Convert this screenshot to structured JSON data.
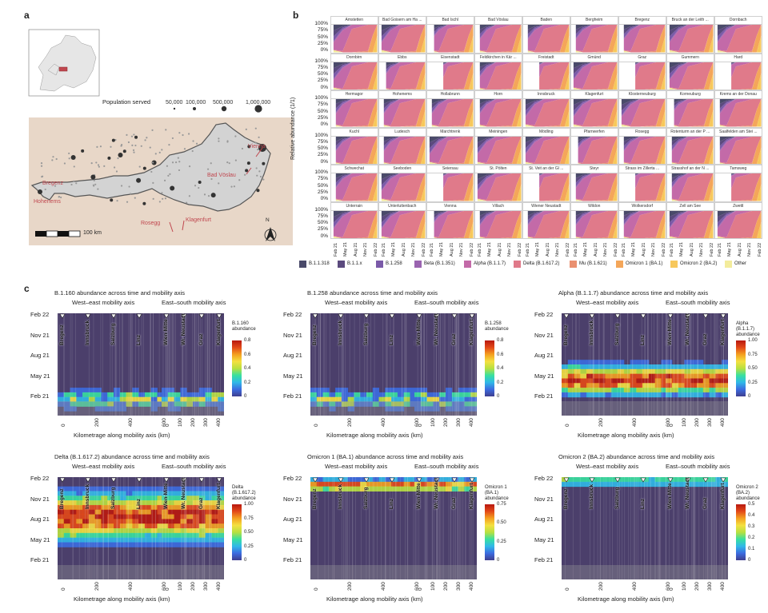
{
  "panel_a": {
    "label": "a",
    "population_title": "Population served",
    "population_sizes": [
      "50,000",
      "100,000",
      "500,000",
      "1,000,000"
    ],
    "cities": [
      "Vienna",
      "Bad Vöslau",
      "Bregenz",
      "Hohenems",
      "Rosegg",
      "Klagenfurt"
    ],
    "scale_label": "100 km",
    "north_label": "N",
    "colors": {
      "map_bg": "#e8d7c8",
      "austria": "#d6d6d6",
      "city": "#c0474f"
    }
  },
  "panel_b": {
    "label": "b",
    "y_axis_title": "Relative abundance (1/1)",
    "y_ticks": [
      "100%",
      "75%",
      "50%",
      "25%",
      "0%"
    ],
    "x_ticks": [
      "Feb 21",
      "May 21",
      "Aug 21",
      "Nov 21",
      "Feb 22"
    ],
    "facets": [
      "Amstetten",
      "Bad Goisern am Ha ...",
      "Bad Ischl",
      "Bad Vöslau",
      "Baden",
      "Bergheim",
      "Bregenz",
      "Bruck an der Leith ...",
      "Dornbach",
      "Dornbirn",
      "Ebbs",
      "Eisenstadt",
      "Feldkirchen in Kär ...",
      "Freistadt",
      "Gmünd",
      "Graz",
      "Gummern",
      "Hard",
      "Hermagor",
      "Hohenems",
      "Hollabrunn",
      "Horn",
      "Innsbruck",
      "Klagenfurt",
      "Klosterneuburg",
      "Korneuburg",
      "Krems an der Donau",
      "Kuchl",
      "Ludesch",
      "Marchtrenk",
      "Meiningen",
      "Mödling",
      "Pfarrwerfen",
      "Rosegg",
      "Rotenturm an der P ...",
      "Saalfelden am Stei ...",
      "Schwechat",
      "Seeboden",
      "Seiersau",
      "St. Pölten",
      "St. Veit an der Gl ...",
      "Steyr",
      "Strass im Zillerta ...",
      "Strasshof an der N ...",
      "Tamsweg",
      "Unterrain",
      "Unterluttenbach",
      "Vienna",
      "Villach",
      "Wiener Neustadt",
      "Wildon",
      "Wolkersdorf",
      "Zell am See",
      "Zwettl"
    ],
    "legend": [
      {
        "name": "B.1.1.318",
        "color": "#4a4a6a"
      },
      {
        "name": "B.1.1.x",
        "color": "#5b4a7e"
      },
      {
        "name": "B.1.258",
        "color": "#7a5aa8"
      },
      {
        "name": "Beta (B.1.351)",
        "color": "#9a64b0"
      },
      {
        "name": "Alpha (B.1.1.7)",
        "color": "#c36aa8"
      },
      {
        "name": "Delta (B.1.617.2)",
        "color": "#e07a8a"
      },
      {
        "name": "Mu (B.1.621)",
        "color": "#ea9070"
      },
      {
        "name": "Omicron 1 (BA.1)",
        "color": "#f4a65a"
      },
      {
        "name": "Omicron 2 (BA.2)",
        "color": "#f7c85c"
      },
      {
        "name": "Other",
        "color": "#f3ec9c"
      }
    ]
  },
  "panel_c": {
    "label": "c",
    "axis_labels": {
      "we": "West–east mobility axis",
      "es": "East–south mobility axis",
      "x": "Kilometrage along mobility axis (km)"
    },
    "y_ticks": [
      "Feb 22",
      "Nov 21",
      "Aug 21",
      "May 21",
      "Feb 21"
    ],
    "we_ticks": [
      "0",
      "200",
      "400",
      "600"
    ],
    "es_ticks": [
      "0",
      "100",
      "200",
      "300",
      "400"
    ],
    "we_cities": [
      "Bregenz",
      "Innsbruck",
      "Salzburg",
      "Linz",
      "Vienna"
    ],
    "es_cities": [
      "Wien-Mitte",
      "Wr. Neustadt",
      "Graz",
      "Klagenfurt"
    ],
    "heatmaps": [
      {
        "title": "B.1.160 abundance across time and mobility axis",
        "legend_title": "B.1.160 abundance",
        "legend_ticks": [
          "0.8",
          "0.6",
          "0.4",
          "0.2",
          "0"
        ],
        "peak": "feb21"
      },
      {
        "title": "B.1.258 abundance across time and mobility axis",
        "legend_title": "B.1.258 abundance",
        "legend_ticks": [
          "0.8",
          "0.6",
          "0.4",
          "0.2",
          "0"
        ],
        "peak": "feb21"
      },
      {
        "title": "Alpha (B.1.1.7) abundance across time and mobility axis",
        "legend_title": "Alpha (B.1.1.7) abundance",
        "legend_ticks": [
          "1.00",
          "0.75",
          "0.50",
          "0.25",
          "0"
        ],
        "peak": "spring21"
      },
      {
        "title": "Delta (B.1.617.2) abundance across time and mobility axis",
        "legend_title": "Delta (B.1.617.2) abundance",
        "legend_ticks": [
          "1.00",
          "0.75",
          "0.50",
          "0.25",
          "0"
        ],
        "peak": "autumn21"
      },
      {
        "title": "Omicron 1 (BA.1) abundance across time and mobility axis",
        "legend_title": "Omicron 1 (BA.1) abundance",
        "legend_ticks": [
          "0.75",
          "0.50",
          "0.25",
          "0"
        ],
        "peak": "jan22"
      },
      {
        "title": "Omicron 2 (BA.2) abundance across time and mobility axis",
        "legend_title": "Omicron 2 (BA.2) abundance",
        "legend_ticks": [
          "0.5",
          "0.4",
          "0.3",
          "0.2",
          "0.1",
          "0"
        ],
        "peak": "feb22"
      }
    ]
  }
}
